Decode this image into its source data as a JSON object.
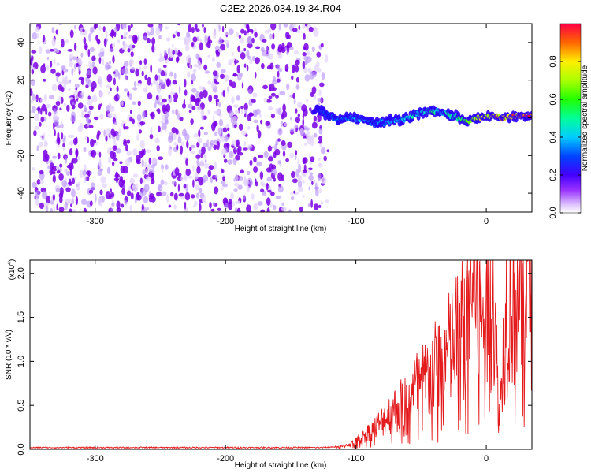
{
  "title": "C2E2.2026.034.19.34.R04",
  "chart_data": [
    {
      "type": "heatmap",
      "name": "spectrogram",
      "xlabel": "Height of straight line (km)",
      "ylabel": "Frequency (Hz)",
      "xlim": [
        -350,
        35
      ],
      "ylim": [
        -50,
        50
      ],
      "x_ticks": [
        -300,
        -200,
        -100,
        0
      ],
      "x_tick_labels": [
        "-300",
        "-200",
        "-100",
        "0"
      ],
      "y_ticks": [
        -40,
        -20,
        0,
        20,
        40
      ],
      "y_tick_labels": [
        "-40",
        "-20",
        "0",
        "20",
        "40"
      ],
      "noise_region_x": [
        -350,
        -125
      ],
      "signal_track": {
        "x": [
          -133,
          -125,
          -115,
          -105,
          -95,
          -85,
          -75,
          -65,
          -55,
          -45,
          -35,
          -25,
          -15,
          -5,
          5,
          15,
          25,
          35
        ],
        "frequency": [
          4,
          3,
          -1,
          0,
          -1,
          -3,
          -2,
          -1,
          2,
          4,
          3,
          1,
          -2,
          0,
          1,
          0,
          1,
          1
        ],
        "amplitude": [
          0.2,
          0.25,
          0.3,
          0.35,
          0.4,
          0.3,
          0.35,
          0.4,
          0.45,
          0.5,
          0.45,
          0.5,
          0.6,
          0.7,
          0.8,
          0.85,
          0.9,
          0.95
        ]
      },
      "colorbar": {
        "label": "Normalized spectral amplitude",
        "range": [
          0,
          1
        ],
        "ticks": [
          0,
          0.2,
          0.4,
          0.6,
          0.8
        ],
        "tick_labels": [
          "0.0",
          "0.2",
          "0.4",
          "0.6",
          "0.8"
        ]
      }
    },
    {
      "type": "line",
      "name": "snr",
      "xlabel": "Height of straight line (km)",
      "ylabel": "SNR (10 * v/v)",
      "y_scale_label": "(x10",
      "y_scale_exponent": "4",
      "xlim": [
        -350,
        35
      ],
      "ylim": [
        0,
        2.15
      ],
      "x_ticks": [
        -300,
        -200,
        -100,
        0
      ],
      "x_tick_labels": [
        "-300",
        "-200",
        "-100",
        "0"
      ],
      "y_ticks": [
        0,
        0.5,
        1.0,
        1.5,
        2.0
      ],
      "y_tick_labels": [
        "0.0",
        "0.5",
        "1.0",
        "1.5",
        "2.0"
      ],
      "series": [
        {
          "name": "SNR",
          "color": "#e41a1c",
          "x": [
            -350,
            -300,
            -250,
            -200,
            -150,
            -125,
            -115,
            -110,
            -105,
            -100,
            -95,
            -90,
            -85,
            -80,
            -75,
            -70,
            -65,
            -60,
            -55,
            -50,
            -45,
            -40,
            -35,
            -30,
            -25,
            -20,
            -15,
            -10,
            -5,
            0,
            5,
            10,
            15,
            20,
            25,
            30,
            35
          ],
          "y": [
            0.02,
            0.02,
            0.02,
            0.02,
            0.02,
            0.02,
            0.03,
            0.05,
            0.08,
            0.12,
            0.18,
            0.25,
            0.3,
            0.38,
            0.45,
            0.5,
            0.55,
            0.6,
            0.7,
            0.75,
            0.82,
            0.9,
            1.0,
            1.1,
            1.2,
            1.35,
            1.45,
            2.12,
            1.5,
            1.7,
            1.9,
            0.35,
            1.6,
            1.8,
            1.85,
            1.95,
            1.9
          ]
        }
      ]
    }
  ]
}
